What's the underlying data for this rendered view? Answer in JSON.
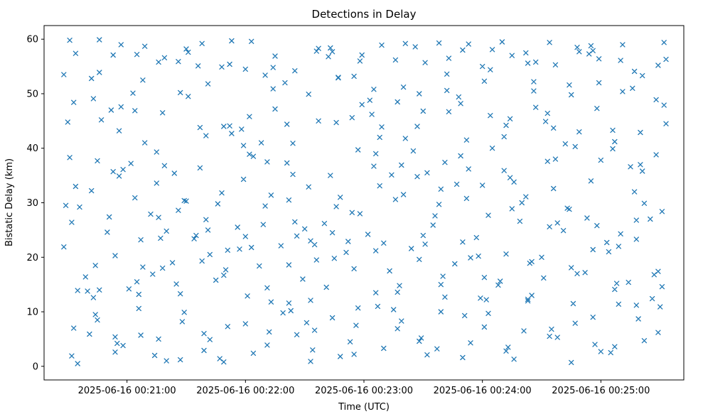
{
  "chart_data": {
    "type": "scatter",
    "title": "Detections in Delay",
    "xlabel": "Time (UTC)",
    "ylabel": "Bistatic Delay (km)",
    "x_tick_labels": [
      "2025-06-16 00:21:00",
      "2025-06-16 00:22:00",
      "2025-06-16 00:23:00",
      "2025-06-16 00:24:00",
      "2025-06-16 00:25:00"
    ],
    "x_tick_seconds": [
      60,
      120,
      180,
      240,
      300
    ],
    "y_ticks": [
      0,
      10,
      20,
      30,
      40,
      50,
      60
    ],
    "xlim_seconds": [
      18,
      342
    ],
    "ylim": [
      -2.5,
      62.5
    ],
    "x_time_origin": "2025-06-16 00:20:00",
    "grid": false,
    "legend": "none",
    "marker": {
      "shape": "x",
      "color": "#1f77b4",
      "size": 6
    },
    "point_count": 420,
    "points": [
      [
        31,
        59.8
      ],
      [
        43,
        49.1
      ],
      [
        54,
        5.4
      ],
      [
        65,
        57.2
      ],
      [
        76,
        55.8
      ],
      [
        87,
        50.2
      ],
      [
        98,
        59.2
      ],
      [
        109,
        44.0
      ],
      [
        120,
        54.5
      ],
      [
        131,
        37.5
      ],
      [
        142,
        30.5
      ],
      [
        153,
        23.0
      ],
      [
        164,
        57.7
      ],
      [
        175,
        53.2
      ],
      [
        186,
        39.0
      ],
      [
        197,
        48.5
      ],
      [
        208,
        50.0
      ],
      [
        219,
        32.5
      ],
      [
        230,
        58.0
      ],
      [
        241,
        52.3
      ],
      [
        252,
        44.2
      ],
      [
        263,
        55.6
      ],
      [
        274,
        59.4
      ],
      [
        285,
        49.8
      ],
      [
        296,
        57.9
      ],
      [
        307,
        41.2
      ],
      [
        318,
        26.8
      ],
      [
        329,
        55.2
      ],
      [
        34,
        33.0
      ],
      [
        46,
        14.0
      ],
      [
        57,
        47.6
      ],
      [
        68,
        18.2
      ],
      [
        79,
        36.8
      ],
      [
        90,
        30.3
      ],
      [
        101,
        25.0
      ],
      [
        112,
        44.1
      ],
      [
        123,
        21.8
      ],
      [
        134,
        54.8
      ],
      [
        145,
        26.5
      ],
      [
        156,
        19.5
      ],
      [
        167,
        53.0
      ],
      [
        178,
        28.0
      ],
      [
        189,
        43.9
      ],
      [
        200,
        31.5
      ],
      [
        211,
        22.4
      ],
      [
        222,
        50.6
      ],
      [
        233,
        36.2
      ],
      [
        244,
        46.0
      ],
      [
        255,
        28.9
      ],
      [
        266,
        52.2
      ],
      [
        277,
        38.0
      ],
      [
        288,
        17.0
      ],
      [
        299,
        56.4
      ],
      [
        310,
        24.3
      ],
      [
        321,
        35.8
      ],
      [
        332,
        47.9
      ],
      [
        29,
        29.5
      ],
      [
        40,
        13.8
      ],
      [
        51,
        27.4
      ],
      [
        62,
        37.2
      ],
      [
        73,
        16.9
      ],
      [
        84,
        35.4
      ],
      [
        95,
        24.0
      ],
      [
        106,
        29.8
      ],
      [
        117,
        21.5
      ],
      [
        128,
        41.0
      ],
      [
        139,
        9.8
      ],
      [
        150,
        25.2
      ],
      [
        161,
        14.5
      ],
      [
        172,
        22.9
      ],
      [
        183,
        48.8
      ],
      [
        194,
        35.1
      ],
      [
        205,
        39.5
      ],
      [
        216,
        27.6
      ],
      [
        227,
        33.4
      ],
      [
        238,
        20.2
      ],
      [
        249,
        15.6
      ],
      [
        260,
        30.0
      ],
      [
        271,
        16.2
      ],
      [
        282,
        40.8
      ],
      [
        293,
        27.2
      ],
      [
        304,
        21.0
      ],
      [
        315,
        36.6
      ],
      [
        326,
        12.4
      ],
      [
        33,
        7.0
      ],
      [
        44,
        18.5
      ],
      [
        55,
        4.2
      ],
      [
        66,
        10.6
      ],
      [
        77,
        23.5
      ],
      [
        88,
        8.2
      ],
      [
        99,
        2.9
      ],
      [
        110,
        17.7
      ],
      [
        121,
        12.9
      ],
      [
        132,
        6.3
      ],
      [
        143,
        10.2
      ],
      [
        154,
        3.0
      ],
      [
        165,
        19.8
      ],
      [
        176,
        7.5
      ],
      [
        187,
        11.0
      ],
      [
        198,
        14.8
      ],
      [
        209,
        5.2
      ],
      [
        220,
        16.5
      ],
      [
        231,
        9.3
      ],
      [
        242,
        12.2
      ],
      [
        253,
        3.5
      ],
      [
        264,
        18.9
      ],
      [
        275,
        6.8
      ],
      [
        286,
        11.5
      ],
      [
        297,
        4.0
      ],
      [
        308,
        15.2
      ],
      [
        319,
        8.7
      ],
      [
        330,
        10.9
      ],
      [
        30,
        44.8
      ],
      [
        42,
        52.8
      ],
      [
        53,
        57.1
      ],
      [
        64,
        46.9
      ],
      [
        75,
        39.3
      ],
      [
        86,
        55.9
      ],
      [
        97,
        43.8
      ],
      [
        108,
        54.9
      ],
      [
        119,
        40.5
      ],
      [
        130,
        53.4
      ],
      [
        141,
        44.4
      ],
      [
        152,
        49.9
      ],
      [
        163,
        58.4
      ],
      [
        174,
        45.6
      ],
      [
        185,
        50.8
      ],
      [
        196,
        56.2
      ],
      [
        207,
        44.0
      ],
      [
        218,
        59.3
      ],
      [
        229,
        48.2
      ],
      [
        240,
        55.0
      ],
      [
        251,
        42.1
      ],
      [
        262,
        57.5
      ],
      [
        273,
        46.4
      ],
      [
        284,
        51.6
      ],
      [
        295,
        58.8
      ],
      [
        306,
        43.3
      ],
      [
        317,
        54.1
      ],
      [
        328,
        48.9
      ],
      [
        35,
        13.9
      ],
      [
        45,
        37.7
      ],
      [
        56,
        34.9
      ],
      [
        67,
        23.2
      ],
      [
        78,
        18.0
      ],
      [
        89,
        30.4
      ],
      [
        100,
        26.9
      ],
      [
        111,
        21.3
      ],
      [
        122,
        38.9
      ],
      [
        133,
        31.4
      ],
      [
        144,
        35.2
      ],
      [
        155,
        22.3
      ],
      [
        166,
        29.3
      ],
      [
        177,
        39.7
      ],
      [
        188,
        33.1
      ],
      [
        199,
        36.9
      ],
      [
        210,
        24.0
      ],
      [
        221,
        37.4
      ],
      [
        232,
        30.8
      ],
      [
        243,
        27.7
      ],
      [
        254,
        34.6
      ],
      [
        265,
        19.2
      ],
      [
        276,
        32.6
      ],
      [
        287,
        40.3
      ],
      [
        298,
        25.8
      ],
      [
        309,
        22.0
      ],
      [
        320,
        37.0
      ],
      [
        331,
        28.4
      ],
      [
        28,
        53.5
      ],
      [
        41,
        5.9
      ],
      [
        52,
        47.0
      ],
      [
        63,
        50.1
      ],
      [
        74,
        2.0
      ],
      [
        85,
        15.1
      ],
      [
        96,
        55.1
      ],
      [
        107,
        1.4
      ],
      [
        118,
        43.5
      ],
      [
        129,
        26.0
      ],
      [
        140,
        52.0
      ],
      [
        151,
        8.0
      ],
      [
        162,
        56.8
      ],
      [
        173,
        4.5
      ],
      [
        184,
        46.2
      ],
      [
        195,
        10.4
      ],
      [
        206,
        58.6
      ],
      [
        217,
        3.2
      ],
      [
        228,
        49.4
      ],
      [
        239,
        12.5
      ],
      [
        250,
        59.5
      ],
      [
        261,
        6.5
      ],
      [
        272,
        44.9
      ],
      [
        283,
        29.0
      ],
      [
        294,
        57.3
      ],
      [
        305,
        2.5
      ],
      [
        316,
        51.0
      ],
      [
        327,
        16.8
      ],
      [
        36,
        29.2
      ],
      [
        47,
        45.2
      ],
      [
        58,
        36.1
      ],
      [
        69,
        41.0
      ],
      [
        80,
        24.8
      ],
      [
        91,
        49.5
      ],
      [
        102,
        20.5
      ],
      [
        113,
        42.7
      ],
      [
        124,
        38.5
      ],
      [
        135,
        47.2
      ],
      [
        146,
        23.9
      ],
      [
        157,
        45.0
      ],
      [
        168,
        31.0
      ],
      [
        179,
        48.0
      ],
      [
        190,
        22.6
      ],
      [
        201,
        41.8
      ],
      [
        212,
        35.5
      ],
      [
        223,
        46.7
      ],
      [
        234,
        19.9
      ],
      [
        245,
        40.0
      ],
      [
        256,
        33.8
      ],
      [
        267,
        47.5
      ],
      [
        278,
        26.3
      ],
      [
        289,
        43.0
      ],
      [
        300,
        37.8
      ],
      [
        311,
        50.4
      ],
      [
        322,
        29.9
      ],
      [
        333,
        44.5
      ],
      [
        32,
        1.9
      ],
      [
        44,
        9.5
      ],
      [
        54,
        2.6
      ],
      [
        66,
        13.2
      ],
      [
        76,
        5.0
      ],
      [
        87,
        1.2
      ],
      [
        99,
        6.0
      ],
      [
        109,
        0.8
      ],
      [
        120,
        7.8
      ],
      [
        131,
        3.9
      ],
      [
        142,
        11.6
      ],
      [
        153,
        0.9
      ],
      [
        164,
        8.9
      ],
      [
        175,
        2.2
      ],
      [
        186,
        13.5
      ],
      [
        197,
        6.9
      ],
      [
        208,
        4.6
      ],
      [
        219,
        10.0
      ],
      [
        230,
        1.6
      ],
      [
        241,
        7.2
      ],
      [
        252,
        2.8
      ],
      [
        263,
        12.0
      ],
      [
        274,
        5.5
      ],
      [
        285,
        0.7
      ],
      [
        296,
        9.0
      ],
      [
        307,
        3.6
      ],
      [
        318,
        11.2
      ],
      [
        329,
        6.2
      ],
      [
        34,
        57.4
      ],
      [
        46,
        53.9
      ],
      [
        57,
        59.0
      ],
      [
        68,
        52.5
      ],
      [
        79,
        56.6
      ],
      [
        90,
        58.2
      ],
      [
        101,
        51.8
      ],
      [
        112,
        55.4
      ],
      [
        123,
        59.6
      ],
      [
        134,
        50.9
      ],
      [
        145,
        54.2
      ],
      [
        156,
        57.8
      ],
      [
        167,
        52.9
      ],
      [
        178,
        56.0
      ],
      [
        189,
        58.9
      ],
      [
        200,
        51.2
      ],
      [
        211,
        55.7
      ],
      [
        222,
        53.6
      ],
      [
        233,
        59.1
      ],
      [
        244,
        54.4
      ],
      [
        255,
        57.0
      ],
      [
        266,
        50.5
      ],
      [
        277,
        55.3
      ],
      [
        288,
        58.5
      ],
      [
        299,
        52.0
      ],
      [
        310,
        56.1
      ],
      [
        321,
        53.3
      ],
      [
        332,
        59.4
      ],
      [
        28,
        21.9
      ],
      [
        39,
        16.4
      ],
      [
        50,
        24.6
      ],
      [
        61,
        14.2
      ],
      [
        72,
        27.9
      ],
      [
        83,
        19.0
      ],
      [
        94,
        23.4
      ],
      [
        105,
        15.8
      ],
      [
        116,
        25.5
      ],
      [
        127,
        18.4
      ],
      [
        138,
        22.1
      ],
      [
        149,
        16.0
      ],
      [
        160,
        26.2
      ],
      [
        171,
        20.9
      ],
      [
        182,
        24.2
      ],
      [
        193,
        17.5
      ],
      [
        204,
        21.6
      ],
      [
        215,
        25.9
      ],
      [
        226,
        18.8
      ],
      [
        237,
        23.6
      ],
      [
        248,
        14.9
      ],
      [
        259,
        26.6
      ],
      [
        270,
        20.0
      ],
      [
        281,
        24.9
      ],
      [
        292,
        17.2
      ],
      [
        303,
        22.7
      ],
      [
        314,
        15.4
      ],
      [
        325,
        27.0
      ],
      [
        33,
        48.4
      ],
      [
        45,
        8.5
      ],
      [
        56,
        43.2
      ],
      [
        67,
        5.7
      ],
      [
        78,
        46.5
      ],
      [
        89,
        9.9
      ],
      [
        100,
        42.3
      ],
      [
        111,
        7.3
      ],
      [
        122,
        45.8
      ],
      [
        133,
        11.8
      ],
      [
        144,
        40.9
      ],
      [
        155,
        6.6
      ],
      [
        166,
        44.7
      ],
      [
        177,
        10.7
      ],
      [
        188,
        42.0
      ],
      [
        199,
        8.3
      ],
      [
        210,
        46.8
      ],
      [
        221,
        12.7
      ],
      [
        232,
        41.5
      ],
      [
        243,
        9.7
      ],
      [
        254,
        45.4
      ],
      [
        265,
        13.0
      ],
      [
        276,
        43.7
      ],
      [
        287,
        7.9
      ],
      [
        298,
        47.3
      ],
      [
        309,
        11.4
      ],
      [
        320,
        42.9
      ],
      [
        331,
        14.6
      ],
      [
        31,
        38.3
      ],
      [
        42,
        32.2
      ],
      [
        53,
        35.7
      ],
      [
        64,
        30.9
      ],
      [
        75,
        33.6
      ],
      [
        86,
        28.6
      ],
      [
        97,
        36.4
      ],
      [
        108,
        31.8
      ],
      [
        119,
        34.3
      ],
      [
        130,
        29.4
      ],
      [
        141,
        37.3
      ],
      [
        152,
        32.9
      ],
      [
        163,
        35.0
      ],
      [
        174,
        28.2
      ],
      [
        185,
        36.7
      ],
      [
        196,
        30.6
      ],
      [
        207,
        34.8
      ],
      [
        218,
        29.7
      ],
      [
        229,
        38.6
      ],
      [
        240,
        33.2
      ],
      [
        251,
        35.9
      ],
      [
        262,
        31.1
      ],
      [
        273,
        37.6
      ],
      [
        284,
        28.8
      ],
      [
        295,
        34.0
      ],
      [
        306,
        39.9
      ],
      [
        317,
        32.0
      ],
      [
        328,
        38.8
      ],
      [
        35,
        0.5
      ],
      [
        46,
        59.9
      ],
      [
        58,
        3.8
      ],
      [
        69,
        58.7
      ],
      [
        80,
        1.0
      ],
      [
        91,
        57.6
      ],
      [
        102,
        4.9
      ],
      [
        113,
        59.7
      ],
      [
        124,
        2.4
      ],
      [
        135,
        56.9
      ],
      [
        146,
        5.8
      ],
      [
        157,
        58.3
      ],
      [
        168,
        1.8
      ],
      [
        179,
        57.1
      ],
      [
        190,
        3.3
      ],
      [
        201,
        59.2
      ],
      [
        212,
        2.1
      ],
      [
        223,
        56.5
      ],
      [
        234,
        4.3
      ],
      [
        245,
        58.1
      ],
      [
        256,
        1.3
      ],
      [
        267,
        55.8
      ],
      [
        278,
        5.3
      ],
      [
        289,
        57.7
      ],
      [
        300,
        2.7
      ],
      [
        311,
        59.0
      ],
      [
        322,
        4.7
      ],
      [
        333,
        56.3
      ],
      [
        32,
        26.4
      ],
      [
        43,
        12.6
      ],
      [
        54,
        20.3
      ],
      [
        65,
        15.5
      ],
      [
        76,
        27.3
      ],
      [
        87,
        13.3
      ],
      [
        98,
        19.3
      ],
      [
        109,
        16.7
      ],
      [
        120,
        23.8
      ],
      [
        131,
        14.4
      ],
      [
        142,
        18.6
      ],
      [
        153,
        12.1
      ],
      [
        164,
        24.5
      ],
      [
        175,
        17.9
      ],
      [
        186,
        21.2
      ],
      [
        197,
        13.6
      ],
      [
        208,
        19.6
      ],
      [
        219,
        15.0
      ],
      [
        230,
        22.8
      ],
      [
        241,
        16.3
      ],
      [
        252,
        20.6
      ],
      [
        263,
        12.3
      ],
      [
        274,
        25.6
      ],
      [
        285,
        18.1
      ],
      [
        296,
        21.4
      ],
      [
        307,
        14.1
      ],
      [
        318,
        23.3
      ],
      [
        329,
        17.4
      ]
    ]
  }
}
